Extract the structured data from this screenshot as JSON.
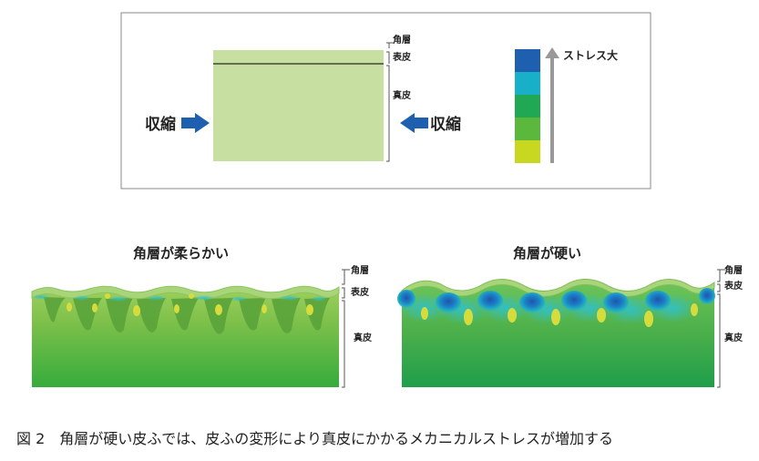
{
  "top_panel": {
    "label_keratin": "角層",
    "label_epidermis": "表皮",
    "label_dermis": "真皮",
    "label_compress_left": "収縮",
    "label_compress_right": "収縮",
    "stress_label": "ストレス大",
    "stress_scale_colors": [
      "#1f5fb0",
      "#18b0c8",
      "#20a855",
      "#5cb83c",
      "#c8d820"
    ]
  },
  "panel_soft": {
    "title": "角層が柔らかい",
    "label_keratin": "角層",
    "label_epidermis": "表皮",
    "label_dermis": "真皮"
  },
  "panel_hard": {
    "title": "角層が硬い",
    "label_keratin": "角層",
    "label_epidermis": "表皮",
    "label_dermis": "真皮"
  },
  "caption": "図 2　角層が硬い皮ふでは、皮ふの変形により真皮にかかるメカニカルストレスが増加する",
  "colors": {
    "tissue_light": "#c7e0a2",
    "dermis_green": "#3cb040",
    "arrow_blue": "#1f5fb0",
    "stress_arrow_gray": "#999999"
  }
}
